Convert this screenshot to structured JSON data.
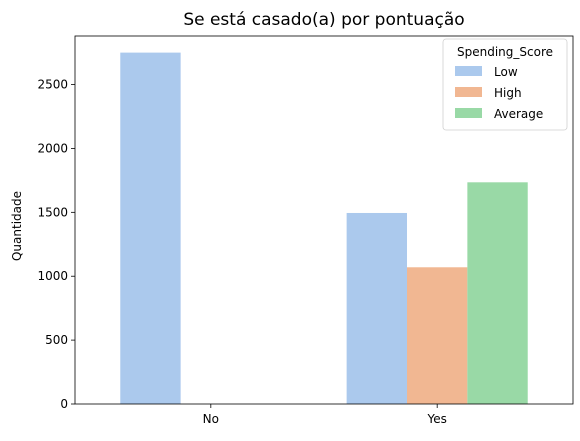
{
  "chart_data": {
    "type": "bar",
    "title": "Se está casado(a) por pontuação",
    "xlabel": "",
    "ylabel": "Quantidade",
    "categories": [
      "No",
      "Yes"
    ],
    "series": [
      {
        "name": "Low",
        "color": "#abc9ed",
        "values": [
          2750,
          1495
        ]
      },
      {
        "name": "High",
        "color": "#f1b792",
        "values": [
          0,
          1070
        ]
      },
      {
        "name": "Average",
        "color": "#99d9a6",
        "values": [
          0,
          1735
        ]
      }
    ],
    "ylim": [
      0,
      2880
    ],
    "yticks": [
      0,
      500,
      1000,
      1500,
      2000,
      2500
    ],
    "grid": false,
    "legend": {
      "title": "Spending_Score",
      "placement": "top-right"
    }
  }
}
